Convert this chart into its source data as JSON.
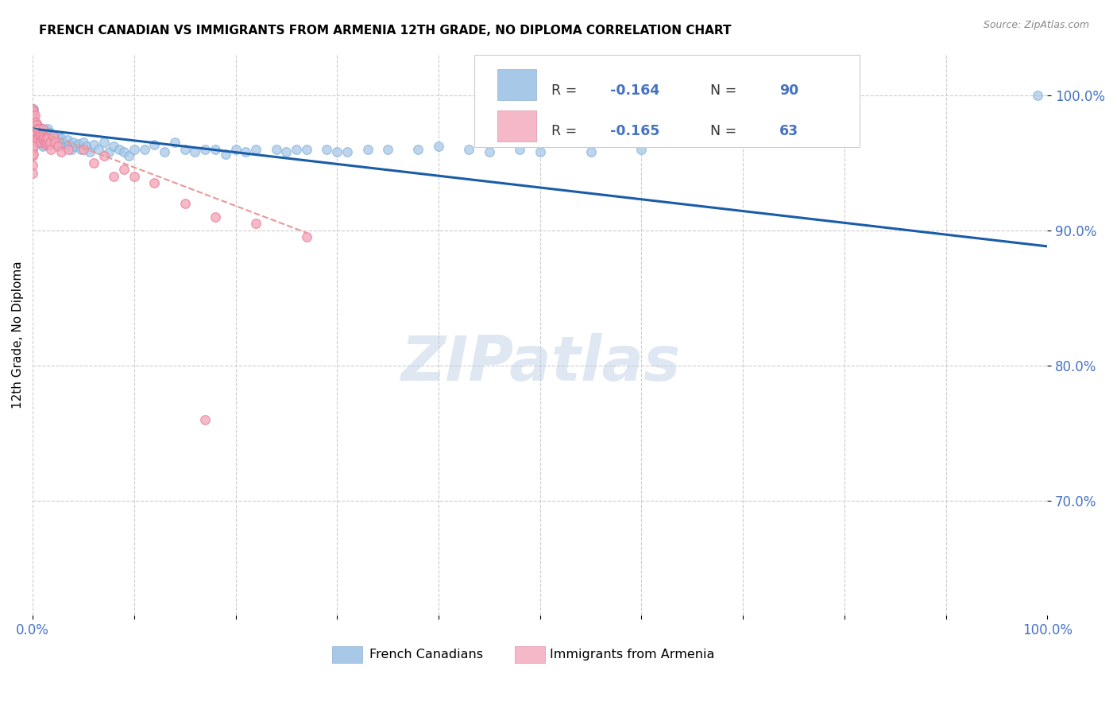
{
  "title": "FRENCH CANADIAN VS IMMIGRANTS FROM ARMENIA 12TH GRADE, NO DIPLOMA CORRELATION CHART",
  "source": "Source: ZipAtlas.com",
  "ylabel": "12th Grade, No Diploma",
  "blue_color": "#a8c8e8",
  "blue_edge": "#7aaed6",
  "pink_color": "#f4a8b8",
  "pink_edge": "#e87898",
  "trend_blue": "#1a5ca8",
  "trend_pink": "#e89898",
  "watermark": "ZIPatlas",
  "blue_scatter": [
    [
      0.001,
      0.99
    ],
    [
      0.001,
      0.98
    ],
    [
      0.002,
      0.975
    ],
    [
      0.003,
      0.972
    ],
    [
      0.003,
      0.968
    ],
    [
      0.004,
      0.973
    ],
    [
      0.005,
      0.978
    ],
    [
      0.005,
      0.97
    ],
    [
      0.005,
      0.965
    ],
    [
      0.006,
      0.975
    ],
    [
      0.006,
      0.97
    ],
    [
      0.007,
      0.967
    ],
    [
      0.008,
      0.972
    ],
    [
      0.008,
      0.965
    ],
    [
      0.009,
      0.97
    ],
    [
      0.009,
      0.963
    ],
    [
      0.01,
      0.975
    ],
    [
      0.01,
      0.968
    ],
    [
      0.01,
      0.962
    ],
    [
      0.011,
      0.97
    ],
    [
      0.011,
      0.965
    ],
    [
      0.012,
      0.968
    ],
    [
      0.013,
      0.973
    ],
    [
      0.013,
      0.965
    ],
    [
      0.014,
      0.97
    ],
    [
      0.015,
      0.975
    ],
    [
      0.015,
      0.968
    ],
    [
      0.016,
      0.965
    ],
    [
      0.017,
      0.972
    ],
    [
      0.018,
      0.968
    ],
    [
      0.019,
      0.965
    ],
    [
      0.02,
      0.97
    ],
    [
      0.021,
      0.966
    ],
    [
      0.022,
      0.968
    ],
    [
      0.023,
      0.964
    ],
    [
      0.025,
      0.97
    ],
    [
      0.026,
      0.966
    ],
    [
      0.027,
      0.963
    ],
    [
      0.028,
      0.968
    ],
    [
      0.03,
      0.965
    ],
    [
      0.032,
      0.962
    ],
    [
      0.034,
      0.967
    ],
    [
      0.036,
      0.963
    ],
    [
      0.038,
      0.96
    ],
    [
      0.04,
      0.965
    ],
    [
      0.042,
      0.962
    ],
    [
      0.045,
      0.964
    ],
    [
      0.048,
      0.96
    ],
    [
      0.05,
      0.965
    ],
    [
      0.053,
      0.962
    ],
    [
      0.056,
      0.958
    ],
    [
      0.06,
      0.963
    ],
    [
      0.065,
      0.96
    ],
    [
      0.07,
      0.965
    ],
    [
      0.075,
      0.958
    ],
    [
      0.08,
      0.962
    ],
    [
      0.085,
      0.96
    ],
    [
      0.09,
      0.958
    ],
    [
      0.095,
      0.955
    ],
    [
      0.1,
      0.96
    ],
    [
      0.11,
      0.96
    ],
    [
      0.12,
      0.963
    ],
    [
      0.13,
      0.958
    ],
    [
      0.14,
      0.965
    ],
    [
      0.15,
      0.96
    ],
    [
      0.16,
      0.958
    ],
    [
      0.17,
      0.96
    ],
    [
      0.18,
      0.96
    ],
    [
      0.19,
      0.956
    ],
    [
      0.2,
      0.96
    ],
    [
      0.21,
      0.958
    ],
    [
      0.22,
      0.96
    ],
    [
      0.24,
      0.96
    ],
    [
      0.25,
      0.958
    ],
    [
      0.26,
      0.96
    ],
    [
      0.27,
      0.96
    ],
    [
      0.29,
      0.96
    ],
    [
      0.3,
      0.958
    ],
    [
      0.31,
      0.958
    ],
    [
      0.33,
      0.96
    ],
    [
      0.35,
      0.96
    ],
    [
      0.38,
      0.96
    ],
    [
      0.4,
      0.962
    ],
    [
      0.43,
      0.96
    ],
    [
      0.45,
      0.958
    ],
    [
      0.48,
      0.96
    ],
    [
      0.5,
      0.958
    ],
    [
      0.55,
      0.958
    ],
    [
      0.6,
      0.96
    ],
    [
      0.99,
      1.0
    ]
  ],
  "pink_scatter": [
    [
      0.0,
      0.99
    ],
    [
      0.0,
      0.985
    ],
    [
      0.0,
      0.98
    ],
    [
      0.0,
      0.975
    ],
    [
      0.0,
      0.97
    ],
    [
      0.0,
      0.965
    ],
    [
      0.0,
      0.96
    ],
    [
      0.0,
      0.955
    ],
    [
      0.0,
      0.948
    ],
    [
      0.0,
      0.942
    ],
    [
      0.001,
      0.988
    ],
    [
      0.001,
      0.983
    ],
    [
      0.001,
      0.978
    ],
    [
      0.001,
      0.972
    ],
    [
      0.001,
      0.967
    ],
    [
      0.001,
      0.962
    ],
    [
      0.001,
      0.956
    ],
    [
      0.002,
      0.985
    ],
    [
      0.002,
      0.978
    ],
    [
      0.002,
      0.972
    ],
    [
      0.003,
      0.98
    ],
    [
      0.003,
      0.975
    ],
    [
      0.003,
      0.969
    ],
    [
      0.004,
      0.978
    ],
    [
      0.004,
      0.972
    ],
    [
      0.005,
      0.975
    ],
    [
      0.005,
      0.968
    ],
    [
      0.006,
      0.975
    ],
    [
      0.006,
      0.97
    ],
    [
      0.007,
      0.972
    ],
    [
      0.008,
      0.97
    ],
    [
      0.008,
      0.965
    ],
    [
      0.009,
      0.968
    ],
    [
      0.01,
      0.975
    ],
    [
      0.01,
      0.97
    ],
    [
      0.011,
      0.968
    ],
    [
      0.012,
      0.965
    ],
    [
      0.013,
      0.968
    ],
    [
      0.013,
      0.963
    ],
    [
      0.014,
      0.965
    ],
    [
      0.015,
      0.968
    ],
    [
      0.016,
      0.963
    ],
    [
      0.017,
      0.965
    ],
    [
      0.018,
      0.96
    ],
    [
      0.02,
      0.97
    ],
    [
      0.022,
      0.965
    ],
    [
      0.025,
      0.962
    ],
    [
      0.028,
      0.958
    ],
    [
      0.035,
      0.96
    ],
    [
      0.05,
      0.96
    ],
    [
      0.06,
      0.95
    ],
    [
      0.07,
      0.955
    ],
    [
      0.08,
      0.94
    ],
    [
      0.09,
      0.945
    ],
    [
      0.1,
      0.94
    ],
    [
      0.12,
      0.935
    ],
    [
      0.15,
      0.92
    ],
    [
      0.17,
      0.76
    ],
    [
      0.18,
      0.91
    ],
    [
      0.22,
      0.905
    ],
    [
      0.27,
      0.895
    ]
  ],
  "x_range": [
    0.0,
    1.0
  ],
  "y_range": [
    0.615,
    1.03
  ],
  "y_ticks": [
    0.7,
    0.8,
    0.9,
    1.0
  ],
  "y_tick_labels": [
    "70.0%",
    "80.0%",
    "90.0%",
    "100.0%"
  ],
  "blue_trend_x": [
    0.0,
    1.0
  ],
  "blue_trend_y": [
    0.975,
    0.888
  ],
  "pink_trend_x": [
    0.0,
    0.27
  ],
  "pink_trend_y": [
    0.975,
    0.898
  ]
}
